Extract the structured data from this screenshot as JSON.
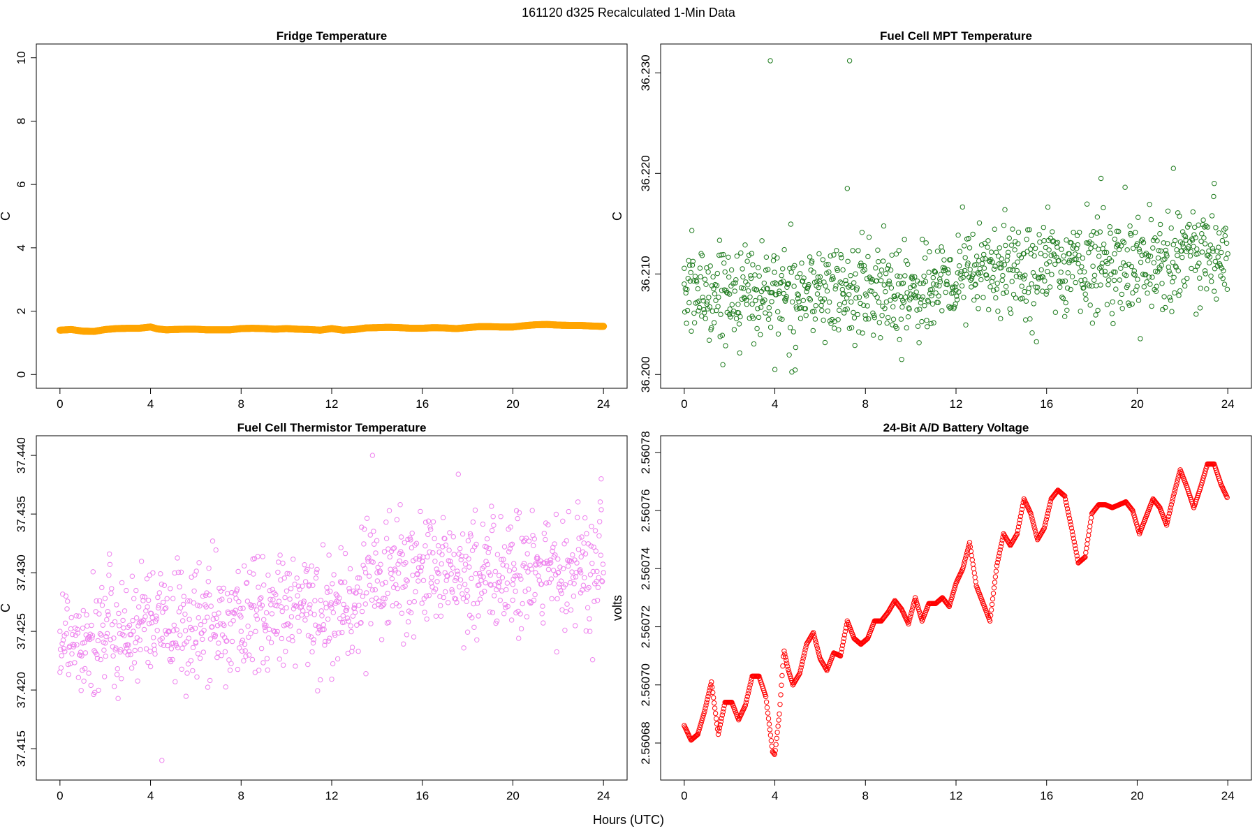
{
  "figure": {
    "suptitle": "161120   d325   Recalculated 1-Min Data",
    "xlabel": "Hours (UTC)"
  },
  "chart_data": [
    {
      "type": "scatter",
      "title": "Fridge Temperature",
      "ylabel": "C",
      "color": "#FFA500",
      "marker": "filled",
      "xlim": [
        0,
        24
      ],
      "ylim": [
        0,
        10
      ],
      "xticks": [
        0,
        4,
        8,
        12,
        16,
        20,
        24
      ],
      "yticks": [
        0,
        2,
        4,
        6,
        8,
        10
      ],
      "ytick_labels": [
        "0",
        "2",
        "4",
        "6",
        "8",
        "10"
      ],
      "series": [
        {
          "name": "fridge",
          "x": [
            0,
            0.5,
            1,
            1.5,
            2,
            2.5,
            3,
            3.5,
            4,
            4.3,
            4.7,
            5,
            5.5,
            6,
            6.5,
            7,
            7.5,
            8,
            8.5,
            9,
            9.5,
            10,
            10.5,
            11,
            11.5,
            12,
            12.5,
            13,
            13.5,
            14,
            14.5,
            15,
            15.5,
            16,
            16.5,
            17,
            17.5,
            18,
            18.5,
            19,
            19.5,
            20,
            20.5,
            21,
            21.5,
            22,
            22.5,
            23,
            23.5,
            24
          ],
          "y": [
            1.4,
            1.42,
            1.37,
            1.36,
            1.42,
            1.45,
            1.46,
            1.46,
            1.5,
            1.44,
            1.41,
            1.42,
            1.43,
            1.43,
            1.41,
            1.41,
            1.41,
            1.45,
            1.46,
            1.45,
            1.43,
            1.45,
            1.43,
            1.42,
            1.4,
            1.45,
            1.4,
            1.42,
            1.47,
            1.48,
            1.49,
            1.48,
            1.46,
            1.46,
            1.48,
            1.47,
            1.45,
            1.48,
            1.51,
            1.51,
            1.5,
            1.5,
            1.54,
            1.57,
            1.58,
            1.56,
            1.55,
            1.55,
            1.53,
            1.52
          ]
        }
      ]
    },
    {
      "type": "scatter",
      "title": "Fuel Cell MPT Temperature",
      "ylabel": "C",
      "color": "#1E7B1E",
      "marker": "open",
      "xlim": [
        0,
        24
      ],
      "ylim": [
        36.2,
        36.2315
      ],
      "xticks": [
        0,
        4,
        8,
        12,
        16,
        20,
        24
      ],
      "yticks": [
        36.2,
        36.21,
        36.22,
        36.23
      ],
      "ytick_labels": [
        "36.200",
        "36.210",
        "36.220",
        "36.230"
      ],
      "series": [
        {
          "name": "mpt",
          "x": [
            0,
            1,
            2,
            3,
            3.8,
            4,
            5,
            6,
            7,
            7.2,
            7.3,
            8,
            9,
            9.6,
            10,
            11,
            12,
            13,
            14,
            15,
            16,
            17,
            18,
            18.4,
            19,
            20,
            21,
            21.6,
            22,
            22.6,
            23,
            23.4,
            24
          ],
          "y": [
            36.209,
            36.207,
            36.208,
            36.207,
            36.2312,
            36.2005,
            36.208,
            36.209,
            36.208,
            36.2185,
            36.2312,
            36.208,
            36.209,
            36.2015,
            36.208,
            36.209,
            36.209,
            36.21,
            36.211,
            36.212,
            36.211,
            36.212,
            36.213,
            36.2195,
            36.212,
            36.213,
            36.214,
            36.2205,
            36.213,
            36.206,
            36.213,
            36.219,
            36.212
          ]
        }
      ]
    },
    {
      "type": "scatter",
      "title": "Fuel Cell Thermistor Temperature",
      "ylabel": "C",
      "color": "#EE82EE",
      "marker": "open",
      "xlim": [
        0,
        24
      ],
      "ylim": [
        37.4135,
        37.4405
      ],
      "xticks": [
        0,
        4,
        8,
        12,
        16,
        20,
        24
      ],
      "yticks": [
        37.415,
        37.42,
        37.425,
        37.43,
        37.435,
        37.44
      ],
      "ytick_labels": [
        "37.415",
        "37.420",
        "37.425",
        "37.430",
        "37.435",
        "37.440"
      ],
      "series": [
        {
          "name": "thermistor",
          "x": [
            0,
            1,
            2,
            3,
            4,
            4.5,
            5,
            6,
            7,
            8,
            9,
            10,
            11,
            12,
            13,
            13.5,
            13.8,
            14,
            15,
            16,
            17,
            18,
            19,
            20,
            21,
            22,
            23,
            23.9,
            24
          ],
          "y": [
            37.425,
            37.424,
            37.424,
            37.423,
            37.422,
            37.414,
            37.424,
            37.424,
            37.424,
            37.425,
            37.426,
            37.427,
            37.427,
            37.427,
            37.427,
            37.43,
            37.44,
            37.43,
            37.431,
            37.431,
            37.43,
            37.428,
            37.429,
            37.429,
            37.43,
            37.43,
            37.43,
            37.438,
            37.43
          ]
        }
      ]
    },
    {
      "type": "scatter",
      "title": "24-Bit A/D Battery Voltage",
      "ylabel": "volts",
      "color": "#FF0000",
      "marker": "open",
      "xlim": [
        0,
        24
      ],
      "ylim": [
        2.560672,
        2.560781
      ],
      "xticks": [
        0,
        4,
        8,
        12,
        16,
        20,
        24
      ],
      "yticks": [
        2.56068,
        2.5607,
        2.56072,
        2.56074,
        2.56076,
        2.56078
      ],
      "ytick_labels": [
        "2.56068",
        "2.56070",
        "2.56072",
        "2.56074",
        "2.56076",
        "2.56078"
      ],
      "series": [
        {
          "name": "voltage",
          "x": [
            0,
            0.3,
            0.6,
            0.9,
            1.2,
            1.5,
            1.8,
            2.1,
            2.4,
            2.7,
            3.0,
            3.3,
            3.6,
            3.9,
            4.0,
            4.2,
            4.4,
            4.6,
            4.8,
            5.1,
            5.4,
            5.7,
            6.0,
            6.3,
            6.6,
            6.9,
            7.2,
            7.5,
            7.8,
            8.1,
            8.4,
            8.7,
            9.0,
            9.3,
            9.6,
            9.9,
            10.2,
            10.5,
            10.8,
            11.1,
            11.4,
            11.7,
            12.0,
            12.3,
            12.6,
            12.9,
            13.2,
            13.5,
            13.8,
            14.1,
            14.4,
            14.7,
            15.0,
            15.3,
            15.6,
            15.9,
            16.2,
            16.5,
            16.8,
            17.1,
            17.4,
            17.7,
            18.0,
            18.3,
            18.6,
            18.9,
            19.2,
            19.5,
            19.8,
            20.1,
            20.4,
            20.7,
            21.0,
            21.3,
            21.6,
            21.9,
            22.2,
            22.5,
            22.8,
            23.1,
            23.4,
            23.7,
            24.0
          ],
          "y": [
            2.560686,
            2.560681,
            2.560683,
            2.560691,
            2.560701,
            2.560683,
            2.560694,
            2.560694,
            2.560688,
            2.560693,
            2.560703,
            2.560703,
            2.560696,
            2.560677,
            2.560676,
            2.56069,
            2.560712,
            2.560705,
            2.5607,
            2.560704,
            2.560714,
            2.560718,
            2.560709,
            2.560705,
            2.560711,
            2.56071,
            2.560722,
            2.560716,
            2.560714,
            2.560716,
            2.560722,
            2.560722,
            2.560725,
            2.560729,
            2.560726,
            2.560721,
            2.56073,
            2.560722,
            2.560728,
            2.560728,
            2.56073,
            2.560727,
            2.560735,
            2.56074,
            2.560749,
            2.560734,
            2.560728,
            2.560722,
            2.560741,
            2.560752,
            2.560748,
            2.560752,
            2.560764,
            2.560759,
            2.56075,
            2.560754,
            2.560764,
            2.560767,
            2.560765,
            2.560754,
            2.560742,
            2.560744,
            2.560759,
            2.560762,
            2.560762,
            2.560761,
            2.560762,
            2.560763,
            2.56076,
            2.560752,
            2.560758,
            2.560764,
            2.560761,
            2.560755,
            2.560765,
            2.560774,
            2.560768,
            2.560761,
            2.560768,
            2.560776,
            2.560776,
            2.560769,
            2.560764
          ]
        }
      ]
    }
  ]
}
